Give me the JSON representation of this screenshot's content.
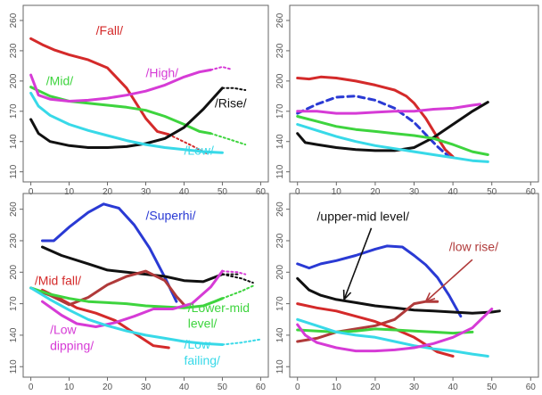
{
  "chart_data": [
    {
      "type": "line",
      "xlim": [
        -2,
        62
      ],
      "ylim": [
        100,
        275
      ],
      "xticks": [
        0,
        10,
        20,
        30,
        40,
        50,
        60
      ],
      "yticks": [
        110,
        140,
        170,
        200,
        230,
        260
      ],
      "series": [
        {
          "name": "/Fall/",
          "color": "#d42a2a",
          "x": [
            0,
            3,
            6,
            10,
            15,
            20,
            25,
            30,
            33,
            36
          ],
          "y": [
            242,
            236,
            231,
            226,
            221,
            213,
            193,
            163,
            150,
            147
          ],
          "ext_x": [
            36,
            42,
            46
          ],
          "ext_y": [
            147,
            136,
            128
          ]
        },
        {
          "name": "/Mid/",
          "color": "#3ed43e",
          "x": [
            0,
            5,
            10,
            15,
            20,
            25,
            30,
            35,
            40,
            44,
            47
          ],
          "y": [
            194,
            185,
            180,
            178,
            176,
            174,
            171,
            165,
            157,
            150,
            148
          ],
          "ext_x": [
            47,
            52,
            56
          ],
          "ext_y": [
            148,
            142,
            137
          ]
        },
        {
          "name": "/High/",
          "color": "#d63bd6",
          "x": [
            0,
            2,
            5,
            10,
            15,
            20,
            25,
            30,
            35,
            40,
            44,
            47
          ],
          "y": [
            206,
            186,
            182,
            180,
            181,
            183,
            186,
            190,
            196,
            204,
            209,
            211
          ],
          "ext_x": [
            47,
            50,
            52
          ],
          "ext_y": [
            211,
            214,
            212
          ]
        },
        {
          "name": "/Rise/",
          "color": "#111111",
          "x": [
            0,
            2,
            5,
            10,
            15,
            20,
            25,
            30,
            35,
            40,
            45,
            50
          ],
          "y": [
            162,
            148,
            140,
            136,
            134,
            134,
            135,
            138,
            143,
            154,
            172,
            193
          ],
          "ext_x": [
            50,
            53,
            56
          ],
          "ext_y": [
            193,
            193,
            191
          ]
        },
        {
          "name": "/Low/",
          "color": "#38d9e8",
          "x": [
            0,
            2,
            5,
            10,
            15,
            20,
            25,
            30,
            35,
            40,
            45,
            50
          ],
          "y": [
            188,
            175,
            166,
            157,
            151,
            146,
            141,
            137,
            134,
            132,
            130,
            129
          ],
          "ext_x": [],
          "ext_y": []
        }
      ],
      "labels": [
        {
          "text": "/Fall/",
          "color": "#d42a2a",
          "x": 17,
          "y": 246
        },
        {
          "text": "/Mid/",
          "color": "#3ed43e",
          "x": 4,
          "y": 196
        },
        {
          "text": "/High/",
          "color": "#d63bd6",
          "x": 30,
          "y": 204
        },
        {
          "text": "/Rise/",
          "color": "#111111",
          "x": 48,
          "y": 174
        },
        {
          "text": "/Low/",
          "color": "#38d9e8",
          "x": 40,
          "y": 127
        }
      ]
    },
    {
      "type": "line",
      "xlim": [
        -2,
        62
      ],
      "ylim": [
        100,
        275
      ],
      "xticks": [
        0,
        10,
        20,
        30,
        40,
        50,
        60
      ],
      "yticks": [
        110,
        140,
        170,
        200,
        230,
        260
      ],
      "series": [
        {
          "color": "#d42a2a",
          "x": [
            0,
            3,
            6,
            10,
            15,
            20,
            25,
            28,
            30,
            33,
            36,
            38,
            40
          ],
          "y": [
            203,
            202,
            204,
            203,
            200,
            196,
            191,
            185,
            178,
            163,
            144,
            132,
            125
          ],
          "ext_x": [],
          "ext_y": []
        },
        {
          "color": "#2a3ad4",
          "dashed": true,
          "x": [
            0,
            5,
            10,
            15,
            20,
            25,
            30,
            33,
            36,
            39
          ],
          "y": [
            168,
            177,
            184,
            185,
            181,
            173,
            159,
            147,
            135,
            125
          ],
          "ext_x": [],
          "ext_y": []
        },
        {
          "color": "#d63bd6",
          "x": [
            0,
            5,
            10,
            15,
            20,
            25,
            30,
            35,
            40,
            45,
            47
          ],
          "y": [
            170,
            170,
            168,
            168,
            169,
            170,
            170,
            172,
            173,
            176,
            177
          ],
          "ext_x": [],
          "ext_y": []
        },
        {
          "color": "#111111",
          "x": [
            0,
            2,
            5,
            10,
            15,
            20,
            25,
            30,
            35,
            40,
            45,
            49
          ],
          "y": [
            148,
            139,
            137,
            134,
            132,
            131,
            131,
            134,
            144,
            157,
            170,
            179
          ],
          "ext_x": [],
          "ext_y": []
        },
        {
          "color": "#3ed43e",
          "x": [
            0,
            5,
            10,
            15,
            20,
            25,
            30,
            35,
            40,
            45,
            49
          ],
          "y": [
            165,
            160,
            155,
            152,
            150,
            148,
            146,
            143,
            137,
            130,
            127
          ],
          "ext_x": [],
          "ext_y": []
        },
        {
          "color": "#38d9e8",
          "x": [
            0,
            5,
            10,
            15,
            20,
            25,
            30,
            35,
            40,
            45,
            49
          ],
          "y": [
            157,
            151,
            145,
            140,
            136,
            133,
            130,
            127,
            124,
            121,
            120
          ],
          "ext_x": [],
          "ext_y": []
        }
      ],
      "labels": []
    },
    {
      "type": "line",
      "xlim": [
        -2,
        62
      ],
      "ylim": [
        100,
        275
      ],
      "xticks": [
        0,
        10,
        20,
        30,
        40,
        50,
        60
      ],
      "yticks": [
        110,
        140,
        170,
        200,
        230,
        260
      ],
      "series": [
        {
          "name": "/Superhi/",
          "color": "#2a3ad4",
          "x": [
            3,
            6,
            10,
            15,
            19,
            23,
            27,
            31,
            35,
            38
          ],
          "y": [
            230,
            230,
            243,
            257,
            265,
            261,
            245,
            223,
            195,
            172
          ],
          "ext_x": [],
          "ext_y": []
        },
        {
          "color": "#111111",
          "x": [
            3,
            8,
            15,
            20,
            25,
            30,
            35,
            40,
            45,
            50
          ],
          "y": [
            224,
            216,
            208,
            202,
            200,
            198,
            196,
            192,
            191,
            198
          ],
          "ext_x": [
            50,
            54
          ],
          "ext_y": [
            198,
            198
          ],
          "ext2_x": [
            50,
            55,
            58
          ],
          "ext2_y": [
            198,
            194,
            190
          ]
        },
        {
          "name": "/Mid fall/",
          "color": "#d42a2a",
          "x": [
            3,
            8,
            12,
            17,
            22,
            27,
            32,
            36
          ],
          "y": [
            183,
            174,
            166,
            161,
            154,
            142,
            130,
            128
          ],
          "ext_x": [],
          "ext_y": []
        },
        {
          "color": "#b03a3a",
          "x": [
            0,
            5,
            10,
            15,
            20,
            25,
            30,
            35,
            38,
            40
          ],
          "y": [
            185,
            178,
            169,
            176,
            188,
            196,
            201,
            192,
            177,
            169
          ],
          "ext_x": [],
          "ext_y": []
        },
        {
          "name": "/Lower-mid level/",
          "color": "#3ed43e",
          "x": [
            0,
            5,
            10,
            15,
            20,
            25,
            30,
            35,
            40,
            45,
            48,
            50
          ],
          "y": [
            185,
            179,
            175,
            172,
            171,
            170,
            168,
            167,
            166,
            168,
            172,
            175
          ],
          "ext_x": [
            50,
            55,
            58
          ],
          "ext_y": [
            175,
            182,
            187
          ]
        },
        {
          "name": "/Low dipping/",
          "color": "#d63bd6",
          "x": [
            3,
            8,
            12,
            17,
            22,
            27,
            32,
            37,
            42,
            47,
            50
          ],
          "y": [
            172,
            159,
            151,
            148,
            152,
            158,
            165,
            165,
            170,
            186,
            201
          ],
          "ext_x": [
            50,
            54,
            56
          ],
          "ext_y": [
            201,
            200,
            198
          ]
        },
        {
          "name": "/Low falling/",
          "color": "#38d9e8",
          "x": [
            0,
            5,
            10,
            15,
            20,
            25,
            30,
            35,
            40,
            45,
            50
          ],
          "y": [
            185,
            174,
            164,
            155,
            149,
            144,
            140,
            137,
            134,
            132,
            131
          ],
          "ext_x": [
            50,
            55,
            60
          ],
          "ext_y": [
            131,
            133,
            136
          ]
        }
      ],
      "labels": [
        {
          "text": "/Superhi/",
          "color": "#2a3ad4",
          "x": 30,
          "y": 250
        },
        {
          "text": "/Mid fall/",
          "color": "#d42a2a",
          "x": 1,
          "y": 188
        },
        {
          "text": "/Lower-mid",
          "color": "#3ed43e",
          "x": 41,
          "y": 162
        },
        {
          "text": "level/",
          "color": "#3ed43e",
          "x": 41,
          "y": 147
        },
        {
          "text": "/Low",
          "color": "#d63bd6",
          "x": 5,
          "y": 141
        },
        {
          "text": "dipping/",
          "color": "#d63bd6",
          "x": 5,
          "y": 126
        },
        {
          "text": "/Low",
          "color": "#38d9e8",
          "x": 40,
          "y": 127
        },
        {
          "text": "failing/",
          "color": "#38d9e8",
          "x": 40,
          "y": 112
        }
      ]
    },
    {
      "type": "line",
      "xlim": [
        -2,
        62
      ],
      "ylim": [
        100,
        275
      ],
      "xticks": [
        0,
        10,
        20,
        30,
        40,
        50,
        60
      ],
      "yticks": [
        110,
        140,
        170,
        200,
        230,
        260
      ],
      "series": [
        {
          "color": "#2a3ad4",
          "x": [
            0,
            3,
            6,
            10,
            15,
            20,
            23,
            27,
            30,
            33,
            36,
            39,
            42
          ],
          "y": [
            208,
            204,
            208,
            211,
            216,
            222,
            225,
            224,
            216,
            207,
            195,
            178,
            158
          ],
          "ext_x": [],
          "ext_y": []
        },
        {
          "name": "/upper-mid level/",
          "color": "#111111",
          "x": [
            0,
            3,
            6,
            10,
            15,
            20,
            25,
            30,
            35,
            40,
            45,
            50,
            52
          ],
          "y": [
            194,
            183,
            178,
            174,
            171,
            168,
            166,
            164,
            163,
            162,
            161,
            162,
            163
          ],
          "ext_x": [],
          "ext_y": []
        },
        {
          "name": "/low rise/",
          "color": "#b03a3a",
          "x": [
            0,
            5,
            10,
            15,
            20,
            25,
            28,
            30,
            33,
            36
          ],
          "y": [
            134,
            137,
            143,
            146,
            149,
            155,
            164,
            170,
            172,
            172
          ],
          "ext_x": [],
          "ext_y": []
        },
        {
          "color": "#d42a2a",
          "x": [
            0,
            5,
            10,
            15,
            20,
            25,
            30,
            33,
            36,
            40
          ],
          "y": [
            170,
            166,
            163,
            158,
            153,
            146,
            138,
            131,
            124,
            120
          ],
          "ext_x": [],
          "ext_y": []
        },
        {
          "color": "#3ed43e",
          "x": [
            0,
            5,
            10,
            15,
            20,
            25,
            30,
            35,
            40,
            45
          ],
          "y": [
            145,
            144,
            143,
            144,
            146,
            145,
            144,
            143,
            142,
            143
          ],
          "ext_x": [],
          "ext_y": []
        },
        {
          "color": "#38d9e8",
          "x": [
            0,
            5,
            10,
            15,
            20,
            25,
            30,
            35,
            40,
            45,
            49
          ],
          "y": [
            155,
            149,
            143,
            140,
            138,
            134,
            130,
            127,
            125,
            122,
            120
          ],
          "ext_x": [],
          "ext_y": []
        },
        {
          "color": "#d63bd6",
          "x": [
            0,
            2,
            5,
            10,
            15,
            20,
            25,
            30,
            35,
            40,
            45,
            50
          ],
          "y": [
            150,
            140,
            133,
            128,
            125,
            125,
            126,
            128,
            132,
            138,
            147,
            165
          ],
          "ext_x": [],
          "ext_y": []
        }
      ],
      "labels": [
        {
          "text": "/upper-mid level/",
          "color": "#111111",
          "x": 5,
          "y": 249
        },
        {
          "text": "/low rise/",
          "color": "#b03a3a",
          "x": 39,
          "y": 220
        }
      ],
      "arrows": [
        {
          "color": "#111111",
          "from_x": 19,
          "from_y": 242,
          "to_x": 12,
          "to_y": 174
        },
        {
          "color": "#b03a3a",
          "from_x": 45,
          "from_y": 212,
          "to_x": 33,
          "to_y": 172
        }
      ]
    }
  ]
}
